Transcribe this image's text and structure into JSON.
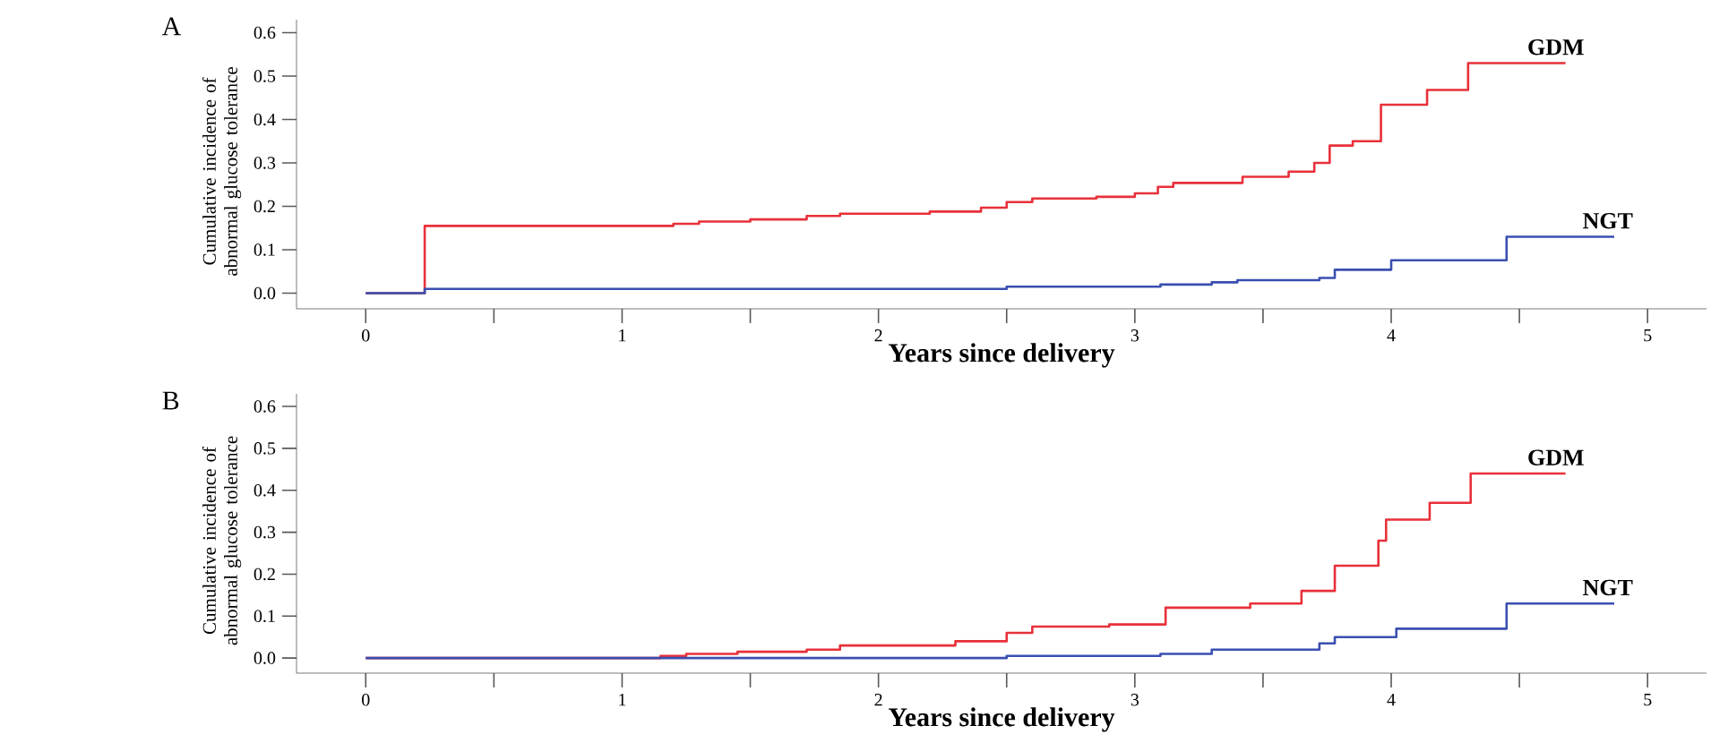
{
  "chart_data": [
    {
      "type": "step",
      "title": "A",
      "xlabel": "Years since delivery",
      "ylabel": "Cumulative incidence of abnormal glucose tolerance",
      "xlim": [
        -0.27,
        5.23
      ],
      "ylim": [
        -0.036,
        0.63
      ],
      "xticks": [
        0,
        {
          "value": 0.5,
          "label": null
        },
        1,
        {
          "value": 1.5,
          "label": null
        },
        2,
        {
          "value": 2.5,
          "label": null
        },
        3,
        {
          "value": 3.5,
          "label": null
        },
        4,
        {
          "value": 4.5,
          "label": null
        },
        5
      ],
      "yticks": [
        {
          "value": 0,
          "label": "0.0"
        },
        0.1,
        0.2,
        0.3,
        0.4,
        0.5,
        0.6
      ],
      "series": [
        {
          "name": "GDM",
          "color": "#e8303a",
          "x": [
            0,
            0.23,
            1.2,
            1.3,
            1.5,
            1.72,
            1.85,
            2.2,
            2.4,
            2.5,
            2.6,
            2.85,
            3.0,
            3.09,
            3.15,
            3.42,
            3.6,
            3.7,
            3.76,
            3.85,
            3.96,
            4.14,
            4.3,
            4.68
          ],
          "values": [
            0,
            0.155,
            0.16,
            0.165,
            0.17,
            0.178,
            0.183,
            0.188,
            0.197,
            0.21,
            0.218,
            0.222,
            0.23,
            0.245,
            0.254,
            0.268,
            0.28,
            0.3,
            0.34,
            0.35,
            0.434,
            0.468,
            0.53,
            0.53
          ]
        },
        {
          "name": "NGT",
          "color": "#3a4fb0",
          "x": [
            0,
            0.23,
            2.5,
            3.1,
            3.3,
            3.4,
            3.72,
            3.78,
            4.0,
            4.45,
            4.87
          ],
          "values": [
            0,
            0.01,
            0.015,
            0.02,
            0.025,
            0.03,
            0.035,
            0.054,
            0.076,
            0.13,
            0.13
          ]
        }
      ]
    },
    {
      "type": "step",
      "title": "B",
      "xlabel": "Years since delivery",
      "ylabel": "Cumulative incidence of abnormal glucose tolerance",
      "xlim": [
        -0.27,
        5.23
      ],
      "ylim": [
        -0.036,
        0.63
      ],
      "xticks": [
        0,
        {
          "value": 0.5,
          "label": null
        },
        1,
        {
          "value": 1.5,
          "label": null
        },
        2,
        {
          "value": 2.5,
          "label": null
        },
        3,
        {
          "value": 3.5,
          "label": null
        },
        4,
        {
          "value": 4.5,
          "label": null
        },
        5
      ],
      "yticks": [
        {
          "value": 0,
          "label": "0.0"
        },
        0.1,
        0.2,
        0.3,
        0.4,
        0.5,
        0.6
      ],
      "series": [
        {
          "name": "GDM",
          "color": "#e8303a",
          "x": [
            0,
            1.15,
            1.25,
            1.45,
            1.72,
            1.85,
            2.3,
            2.5,
            2.6,
            2.9,
            3.12,
            3.45,
            3.65,
            3.78,
            3.95,
            3.98,
            4.15,
            4.31,
            4.68
          ],
          "values": [
            0,
            0.005,
            0.01,
            0.015,
            0.02,
            0.03,
            0.04,
            0.06,
            0.075,
            0.08,
            0.12,
            0.13,
            0.16,
            0.22,
            0.28,
            0.33,
            0.37,
            0.44,
            0.44
          ]
        },
        {
          "name": "NGT",
          "color": "#3a4fb0",
          "x": [
            0,
            2.5,
            3.1,
            3.3,
            3.72,
            3.78,
            4.02,
            4.45,
            4.87
          ],
          "values": [
            0,
            0.005,
            0.01,
            0.02,
            0.035,
            0.05,
            0.07,
            0.13,
            0.13
          ]
        }
      ]
    }
  ]
}
